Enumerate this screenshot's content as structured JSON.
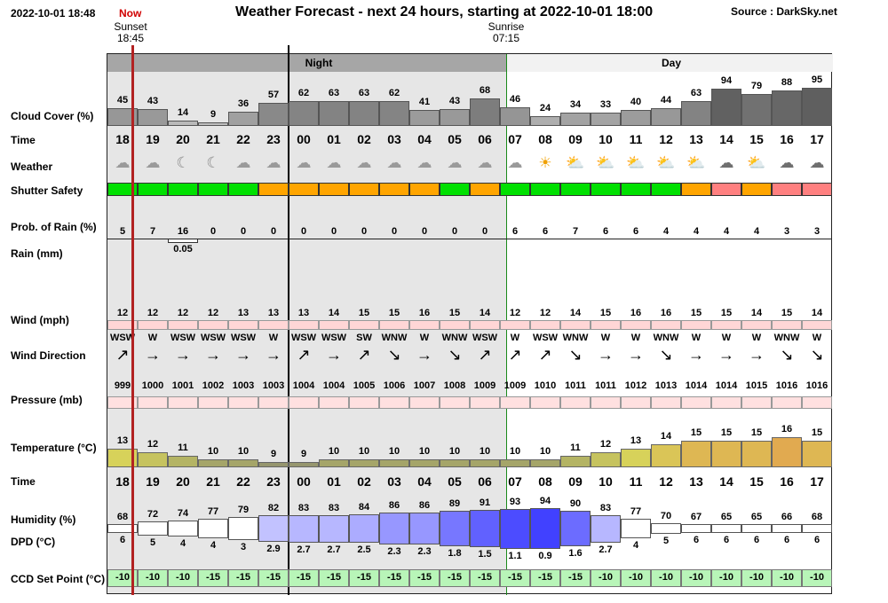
{
  "header": {
    "timestamp": "2022-10-01 18:48",
    "now_label": "Now",
    "title": "Weather Forecast - next 24 hours, starting at 2022-10-01 18:00",
    "source": "Source : DarkSky.net"
  },
  "sun": {
    "sunset_label": "Sunset",
    "sunset_time": "18:45",
    "sunrise_label": "Sunrise",
    "sunrise_time": "07:15"
  },
  "period_labels": {
    "night": "Night",
    "day": "Day"
  },
  "row_labels": {
    "cloud": "Cloud Cover (%)",
    "time": "Time",
    "weather": "Weather",
    "shutter": "Shutter Safety",
    "rain_prob": "Prob. of Rain (%)",
    "rain": "Rain (mm)",
    "wind": "Wind (mph)",
    "wind_dir": "Wind Direction",
    "pressure": "Pressure (mb)",
    "temperature": "Temperature (°C)",
    "time2": "Time",
    "humidity": "Humidity (%)",
    "dpd": "DPD (°C)",
    "ccd": "CCD Set Point (°C)"
  },
  "colors": {
    "night_shade": "#e6e6e6",
    "accent_now": "#c0392b",
    "safe": "#00e000",
    "caution": "#ffa500",
    "unsafe": "#ff8080",
    "wind_bar": "#ffd6d6",
    "pressure_bar": "#ffe0e0",
    "ccd_bar": "#b8f5b8"
  },
  "hours": [
    {
      "time": "18",
      "cloud": 45,
      "weather": "partly-cloudy-night",
      "shutter": "safe",
      "rain_prob": "5",
      "rain_mm": "",
      "wind": "12",
      "wind_dir": "WSW",
      "wind_arrow": "↗",
      "pressure": "999",
      "temp": "13",
      "humidity": "68",
      "dpd": "6",
      "ccd": "-10"
    },
    {
      "time": "19",
      "cloud": 43,
      "weather": "partly-cloudy-night",
      "shutter": "safe",
      "rain_prob": "7",
      "rain_mm": "",
      "wind": "12",
      "wind_dir": "W",
      "wind_arrow": "→",
      "pressure": "1000",
      "temp": "12",
      "humidity": "72",
      "dpd": "5",
      "ccd": "-10"
    },
    {
      "time": "20",
      "cloud": 14,
      "weather": "clear-night",
      "shutter": "safe",
      "rain_prob": "16",
      "rain_mm": "0.05",
      "wind": "12",
      "wind_dir": "WSW",
      "wind_arrow": "→",
      "pressure": "1001",
      "temp": "11",
      "humidity": "74",
      "dpd": "4",
      "ccd": "-10"
    },
    {
      "time": "21",
      "cloud": 9,
      "weather": "clear-night",
      "shutter": "safe",
      "rain_prob": "0",
      "rain_mm": "",
      "wind": "12",
      "wind_dir": "WSW",
      "wind_arrow": "→",
      "pressure": "1002",
      "temp": "10",
      "humidity": "77",
      "dpd": "4",
      "ccd": "-15"
    },
    {
      "time": "22",
      "cloud": 36,
      "weather": "partly-cloudy-night",
      "shutter": "safe",
      "rain_prob": "0",
      "rain_mm": "",
      "wind": "13",
      "wind_dir": "WSW",
      "wind_arrow": "→",
      "pressure": "1003",
      "temp": "10",
      "humidity": "79",
      "dpd": "3",
      "ccd": "-15"
    },
    {
      "time": "23",
      "cloud": 57,
      "weather": "partly-cloudy-night",
      "shutter": "caution",
      "rain_prob": "0",
      "rain_mm": "",
      "wind": "13",
      "wind_dir": "W",
      "wind_arrow": "→",
      "pressure": "1003",
      "temp": "9",
      "humidity": "82",
      "dpd": "2.9",
      "ccd": "-15"
    },
    {
      "time": "00",
      "cloud": 62,
      "weather": "partly-cloudy-night",
      "shutter": "caution",
      "rain_prob": "0",
      "rain_mm": "",
      "wind": "13",
      "wind_dir": "WSW",
      "wind_arrow": "↗",
      "pressure": "1004",
      "temp": "9",
      "humidity": "83",
      "dpd": "2.7",
      "ccd": "-15"
    },
    {
      "time": "01",
      "cloud": 63,
      "weather": "partly-cloudy-night",
      "shutter": "caution",
      "rain_prob": "0",
      "rain_mm": "",
      "wind": "14",
      "wind_dir": "WSW",
      "wind_arrow": "→",
      "pressure": "1004",
      "temp": "10",
      "humidity": "83",
      "dpd": "2.7",
      "ccd": "-15"
    },
    {
      "time": "02",
      "cloud": 63,
      "weather": "partly-cloudy-night",
      "shutter": "caution",
      "rain_prob": "0",
      "rain_mm": "",
      "wind": "15",
      "wind_dir": "SW",
      "wind_arrow": "↗",
      "pressure": "1005",
      "temp": "10",
      "humidity": "84",
      "dpd": "2.5",
      "ccd": "-15"
    },
    {
      "time": "03",
      "cloud": 62,
      "weather": "partly-cloudy-night",
      "shutter": "caution",
      "rain_prob": "0",
      "rain_mm": "",
      "wind": "15",
      "wind_dir": "WNW",
      "wind_arrow": "↘",
      "pressure": "1006",
      "temp": "10",
      "humidity": "86",
      "dpd": "2.3",
      "ccd": "-15"
    },
    {
      "time": "04",
      "cloud": 41,
      "weather": "partly-cloudy-night",
      "shutter": "caution",
      "rain_prob": "0",
      "rain_mm": "",
      "wind": "16",
      "wind_dir": "W",
      "wind_arrow": "→",
      "pressure": "1007",
      "temp": "10",
      "humidity": "86",
      "dpd": "2.3",
      "ccd": "-15"
    },
    {
      "time": "05",
      "cloud": 43,
      "weather": "partly-cloudy-night",
      "shutter": "safe",
      "rain_prob": "0",
      "rain_mm": "",
      "wind": "15",
      "wind_dir": "WNW",
      "wind_arrow": "↘",
      "pressure": "1008",
      "temp": "10",
      "humidity": "89",
      "dpd": "1.8",
      "ccd": "-15"
    },
    {
      "time": "06",
      "cloud": 68,
      "weather": "partly-cloudy-night",
      "shutter": "caution",
      "rain_prob": "0",
      "rain_mm": "",
      "wind": "14",
      "wind_dir": "WSW",
      "wind_arrow": "↗",
      "pressure": "1009",
      "temp": "10",
      "humidity": "91",
      "dpd": "1.5",
      "ccd": "-15"
    },
    {
      "time": "07",
      "cloud": 46,
      "weather": "partly-cloudy-night",
      "shutter": "safe",
      "rain_prob": "6",
      "rain_mm": "",
      "wind": "12",
      "wind_dir": "W",
      "wind_arrow": "↗",
      "pressure": "1009",
      "temp": "10",
      "humidity": "93",
      "dpd": "1.1",
      "ccd": "-15"
    },
    {
      "time": "08",
      "cloud": 24,
      "weather": "clear-day",
      "shutter": "safe",
      "rain_prob": "6",
      "rain_mm": "",
      "wind": "12",
      "wind_dir": "WSW",
      "wind_arrow": "↗",
      "pressure": "1010",
      "temp": "10",
      "humidity": "94",
      "dpd": "0.9",
      "ccd": "-15"
    },
    {
      "time": "09",
      "cloud": 34,
      "weather": "partly-cloudy-day",
      "shutter": "safe",
      "rain_prob": "7",
      "rain_mm": "",
      "wind": "14",
      "wind_dir": "WNW",
      "wind_arrow": "↘",
      "pressure": "1011",
      "temp": "11",
      "humidity": "90",
      "dpd": "1.6",
      "ccd": "-15"
    },
    {
      "time": "10",
      "cloud": 33,
      "weather": "partly-cloudy-day",
      "shutter": "safe",
      "rain_prob": "6",
      "rain_mm": "",
      "wind": "15",
      "wind_dir": "W",
      "wind_arrow": "→",
      "pressure": "1011",
      "temp": "12",
      "humidity": "83",
      "dpd": "2.7",
      "ccd": "-10"
    },
    {
      "time": "11",
      "cloud": 40,
      "weather": "partly-cloudy-day",
      "shutter": "safe",
      "rain_prob": "6",
      "rain_mm": "",
      "wind": "16",
      "wind_dir": "W",
      "wind_arrow": "→",
      "pressure": "1012",
      "temp": "13",
      "humidity": "77",
      "dpd": "4",
      "ccd": "-10"
    },
    {
      "time": "12",
      "cloud": 44,
      "weather": "partly-cloudy-day",
      "shutter": "safe",
      "rain_prob": "4",
      "rain_mm": "",
      "wind": "16",
      "wind_dir": "WNW",
      "wind_arrow": "↘",
      "pressure": "1013",
      "temp": "14",
      "humidity": "70",
      "dpd": "5",
      "ccd": "-10"
    },
    {
      "time": "13",
      "cloud": 63,
      "weather": "partly-cloudy-day",
      "shutter": "caution",
      "rain_prob": "4",
      "rain_mm": "",
      "wind": "15",
      "wind_dir": "W",
      "wind_arrow": "→",
      "pressure": "1014",
      "temp": "15",
      "humidity": "67",
      "dpd": "6",
      "ccd": "-10"
    },
    {
      "time": "14",
      "cloud": 94,
      "weather": "cloudy",
      "shutter": "unsafe",
      "rain_prob": "4",
      "rain_mm": "",
      "wind": "15",
      "wind_dir": "W",
      "wind_arrow": "→",
      "pressure": "1014",
      "temp": "15",
      "humidity": "65",
      "dpd": "6",
      "ccd": "-10"
    },
    {
      "time": "15",
      "cloud": 79,
      "weather": "partly-cloudy-day",
      "shutter": "caution",
      "rain_prob": "4",
      "rain_mm": "",
      "wind": "14",
      "wind_dir": "W",
      "wind_arrow": "→",
      "pressure": "1015",
      "temp": "15",
      "humidity": "65",
      "dpd": "6",
      "ccd": "-10"
    },
    {
      "time": "16",
      "cloud": 88,
      "weather": "cloudy",
      "shutter": "unsafe",
      "rain_prob": "3",
      "rain_mm": "",
      "wind": "15",
      "wind_dir": "WNW",
      "wind_arrow": "↘",
      "pressure": "1016",
      "temp": "16",
      "humidity": "66",
      "dpd": "6",
      "ccd": "-10"
    },
    {
      "time": "17",
      "cloud": 95,
      "weather": "cloudy",
      "shutter": "unsafe",
      "rain_prob": "3",
      "rain_mm": "",
      "wind": "14",
      "wind_dir": "W",
      "wind_arrow": "↘",
      "pressure": "1016",
      "temp": "15",
      "humidity": "68",
      "dpd": "6",
      "ccd": "-10"
    }
  ]
}
